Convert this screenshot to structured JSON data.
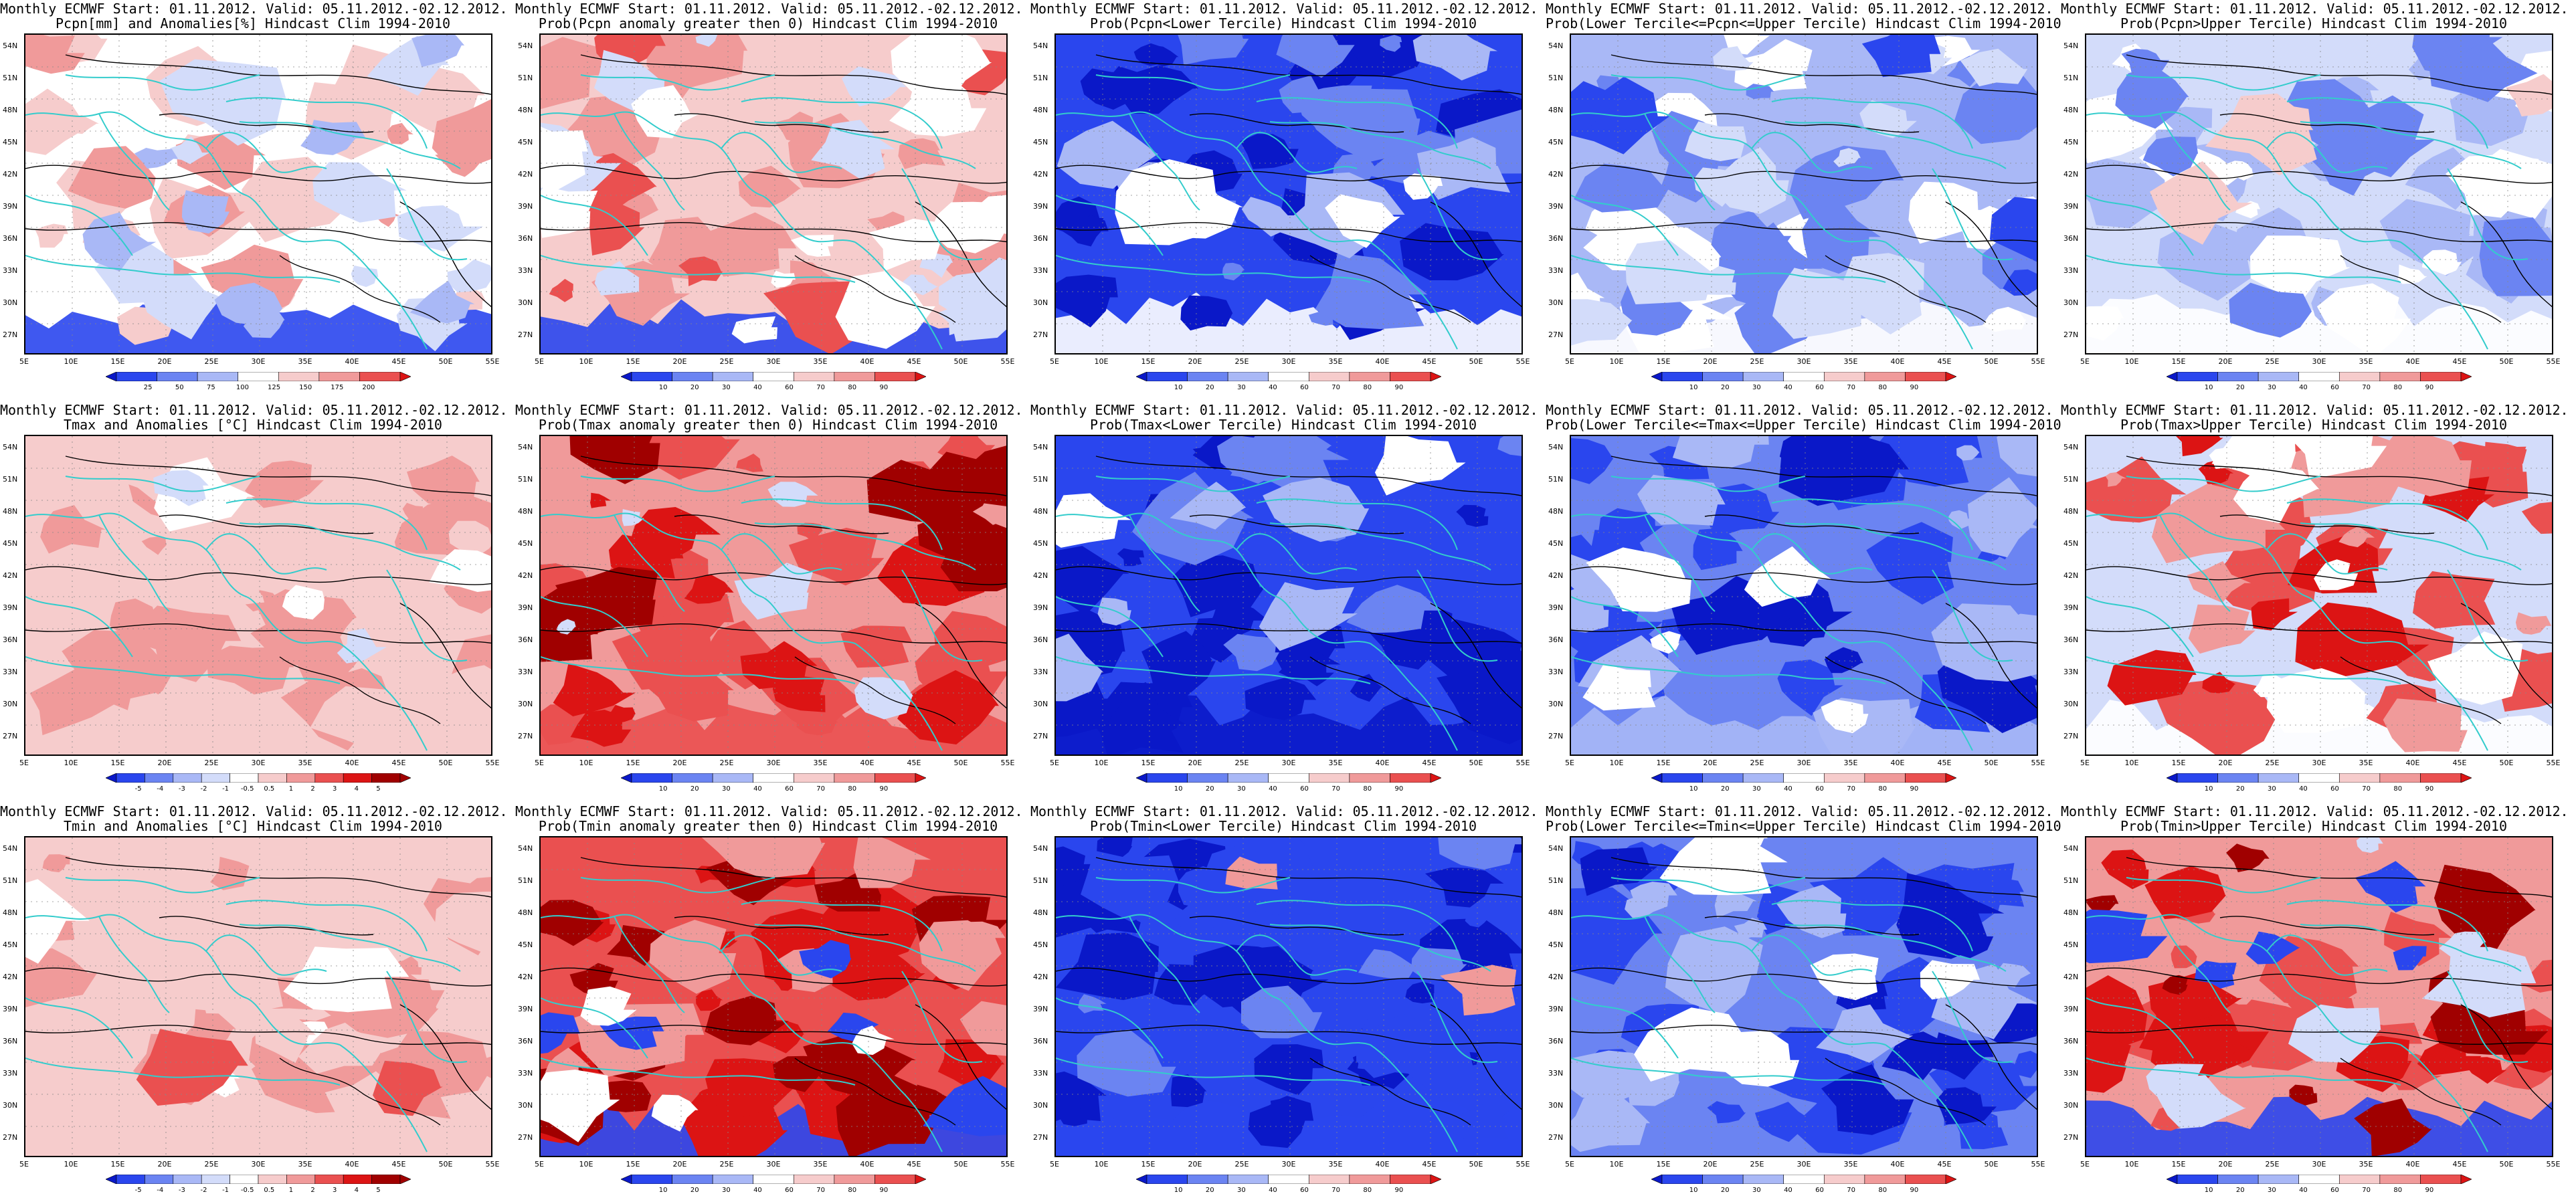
{
  "colors": {
    "dark_blue": "#0a18c8",
    "blue": "#2a46ee",
    "mid_blue": "#6b84f2",
    "light_blue": "#a9b8f6",
    "pale_blue": "#d3dcfa",
    "white": "#ffffff",
    "pale_red": "#f6cccc",
    "light_red": "#f09a9a",
    "red": "#ea5050",
    "bright_red": "#dc1414",
    "dark_red": "#a00000",
    "coast": "#33cccc",
    "contour": "#000000"
  },
  "lat_labels": [
    "54N",
    "51N",
    "48N",
    "45N",
    "42N",
    "39N",
    "36N",
    "33N",
    "30N",
    "27N"
  ],
  "lon_labels": [
    "5E",
    "10E",
    "15E",
    "20E",
    "25E",
    "30E",
    "35E",
    "40E",
    "45E",
    "50E",
    "55E"
  ],
  "panels": [
    {
      "id": "r1c1",
      "line1": "Monthly ECMWF Start: 01.11.2012. Valid: 05.11.2012.-02.12.2012.",
      "line2": "Pcpn[mm] and Anomalies[%] Hindcast Clim 1994-2010",
      "colorbar_labels": [
        "25",
        "50",
        "75",
        "100",
        "125",
        "150",
        "175",
        "200"
      ],
      "scheme": "pcp_anom"
    },
    {
      "id": "r1c2",
      "line1": "Monthly ECMWF Start: 01.11.2012. Valid: 05.11.2012.-02.12.2012.",
      "line2": "Prob(Pcpn anomaly greater then 0) Hindcast Clim 1994-2010",
      "colorbar_labels": [
        "10",
        "20",
        "30",
        "40",
        "60",
        "70",
        "80",
        "90"
      ],
      "scheme": "pcp_prob_pos"
    },
    {
      "id": "r1c3",
      "line1": "Monthly ECMWF Start: 01.11.2012. Valid: 05.11.2012.-02.12.2012.",
      "line2": "Prob(Pcpn<Lower Tercile) Hindcast Clim 1994-2010",
      "colorbar_labels": [
        "10",
        "20",
        "30",
        "40",
        "60",
        "70",
        "80",
        "90"
      ],
      "scheme": "pcp_lower"
    },
    {
      "id": "r1c4",
      "line1": "Monthly ECMWF Start: 01.11.2012. Valid: 05.11.2012.-02.12.2012.",
      "line2": "Prob(Lower Tercile<=Pcpn<=Upper Tercile) Hindcast Clim 1994-2010",
      "colorbar_labels": [
        "10",
        "20",
        "30",
        "40",
        "60",
        "70",
        "80",
        "90"
      ],
      "scheme": "pcp_mid"
    },
    {
      "id": "r1c5",
      "line1": "Monthly ECMWF Start: 01.11.2012. Valid: 05.11.2012.-02.12.2012.",
      "line2": "Prob(Pcpn>Upper Tercile) Hindcast Clim 1994-2010",
      "colorbar_labels": [
        "10",
        "20",
        "30",
        "40",
        "60",
        "70",
        "80",
        "90"
      ],
      "scheme": "pcp_upper"
    },
    {
      "id": "r2c1",
      "line1": "Monthly ECMWF Start: 01.11.2012. Valid: 05.11.2012.-02.12.2012.",
      "line2": "Tmax and Anomalies [°C] Hindcast Clim 1994-2010",
      "colorbar_labels": [
        "-5",
        "-4",
        "-3",
        "-2",
        "-1",
        "-0.5",
        "0.5",
        "1",
        "2",
        "3",
        "4",
        "5"
      ],
      "scheme": "t_anom"
    },
    {
      "id": "r2c2",
      "line1": "Monthly ECMWF Start: 01.11.2012. Valid: 05.11.2012.-02.12.2012.",
      "line2": "Prob(Tmax anomaly greater then 0) Hindcast Clim 1994-2010",
      "colorbar_labels": [
        "10",
        "20",
        "30",
        "40",
        "60",
        "70",
        "80",
        "90"
      ],
      "scheme": "t_prob_pos"
    },
    {
      "id": "r2c3",
      "line1": "Monthly ECMWF Start: 01.11.2012. Valid: 05.11.2012.-02.12.2012.",
      "line2": "Prob(Tmax<Lower Tercile) Hindcast Clim 1994-2010",
      "colorbar_labels": [
        "10",
        "20",
        "30",
        "40",
        "60",
        "70",
        "80",
        "90"
      ],
      "scheme": "t_lower"
    },
    {
      "id": "r2c4",
      "line1": "Monthly ECMWF Start: 01.11.2012. Valid: 05.11.2012.-02.12.2012.",
      "line2": "Prob(Lower Tercile<=Tmax<=Upper Tercile) Hindcast Clim 1994-2010",
      "colorbar_labels": [
        "10",
        "20",
        "30",
        "40",
        "60",
        "70",
        "80",
        "90"
      ],
      "scheme": "t_mid"
    },
    {
      "id": "r2c5",
      "line1": "Monthly ECMWF Start: 01.11.2012. Valid: 05.11.2012.-02.12.2012.",
      "line2": "Prob(Tmax>Upper Tercile) Hindcast Clim 1994-2010",
      "colorbar_labels": [
        "10",
        "20",
        "30",
        "40",
        "60",
        "70",
        "80",
        "90"
      ],
      "scheme": "t_upper"
    },
    {
      "id": "r3c1",
      "line1": "Monthly ECMWF Start: 01.11.2012. Valid: 05.11.2012.-02.12.2012.",
      "line2": "Tmin and Anomalies [°C] Hindcast Clim 1994-2010",
      "colorbar_labels": [
        "-5",
        "-4",
        "-3",
        "-2",
        "-1",
        "-0.5",
        "0.5",
        "1",
        "2",
        "3",
        "4",
        "5"
      ],
      "scheme": "tmin_anom"
    },
    {
      "id": "r3c2",
      "line1": "Monthly ECMWF Start: 01.11.2012. Valid: 05.11.2012.-02.12.2012.",
      "line2": "Prob(Tmin anomaly greater then 0) Hindcast Clim 1994-2010",
      "colorbar_labels": [
        "10",
        "20",
        "30",
        "40",
        "60",
        "70",
        "80",
        "90"
      ],
      "scheme": "tmin_prob_pos"
    },
    {
      "id": "r3c3",
      "line1": "Monthly ECMWF Start: 01.11.2012. Valid: 05.11.2012.-02.12.2012.",
      "line2": "Prob(Tmin<Lower Tercile) Hindcast Clim 1994-2010",
      "colorbar_labels": [
        "10",
        "20",
        "30",
        "40",
        "60",
        "70",
        "80",
        "90"
      ],
      "scheme": "tmin_lower"
    },
    {
      "id": "r3c4",
      "line1": "Monthly ECMWF Start: 01.11.2012. Valid: 05.11.2012.-02.12.2012.",
      "line2": "Prob(Lower Tercile<=Tmin<=Upper Tercile) Hindcast Clim 1994-2010",
      "colorbar_labels": [
        "10",
        "20",
        "30",
        "40",
        "60",
        "70",
        "80",
        "90"
      ],
      "scheme": "tmin_mid"
    },
    {
      "id": "r3c5",
      "line1": "Monthly ECMWF Start: 01.11.2012. Valid: 05.11.2012.-02.12.2012.",
      "line2": "Prob(Tmin>Upper Tercile) Hindcast Clim 1994-2010",
      "colorbar_labels": [
        "10",
        "20",
        "30",
        "40",
        "60",
        "70",
        "80",
        "90"
      ],
      "scheme": "tmin_upper"
    }
  ]
}
